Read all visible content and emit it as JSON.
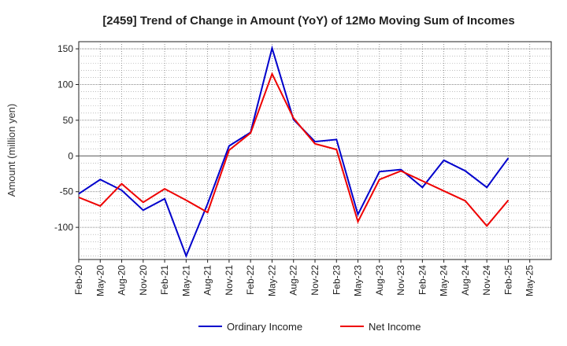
{
  "chart_data": {
    "type": "line",
    "title": "[2459]  Trend of Change in Amount (YoY) of 12Mo Moving Sum of Incomes",
    "xlabel": "",
    "ylabel": "Amount (million yen)",
    "ylim": [
      -145,
      160
    ],
    "yticks": [
      150,
      100,
      50,
      0,
      -50,
      -100
    ],
    "ytick_labels": [
      "150",
      "100",
      "50",
      "0",
      "-50",
      "-100"
    ],
    "x_labels": [
      "Feb-20",
      "May-20",
      "Aug-20",
      "Nov-20",
      "Feb-21",
      "May-21",
      "Aug-21",
      "Nov-21",
      "Feb-22",
      "May-22",
      "Aug-22",
      "Nov-22",
      "Feb-23",
      "May-23",
      "Aug-23",
      "Nov-23",
      "Feb-24",
      "May-24",
      "Aug-24",
      "Nov-24",
      "Feb-25",
      "May-25"
    ],
    "series": [
      {
        "name": "Ordinary Income",
        "color": "#0000cc",
        "values": [
          -53,
          -33,
          -48,
          -76,
          -60,
          -140,
          -67,
          14,
          33,
          151,
          51,
          20,
          23,
          -82,
          -22,
          -19,
          -44,
          -6,
          -21,
          -44,
          -3,
          null
        ]
      },
      {
        "name": "Net Income",
        "color": "#ee0000",
        "values": [
          -58,
          -70,
          -39,
          -65,
          -46,
          -62,
          -79,
          8,
          32,
          115,
          53,
          17,
          9,
          -92,
          -33,
          -21,
          -35,
          -49,
          -63,
          -98,
          -62,
          null
        ]
      }
    ],
    "legend_position": "bottom-center",
    "grid": true
  }
}
